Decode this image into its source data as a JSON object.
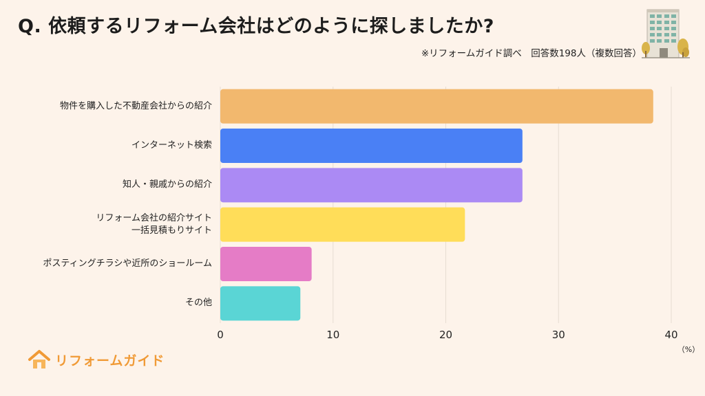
{
  "title": "Q.  依頼するリフォーム会社はどのように探しましたか?",
  "subtitle": "※リフォームガイド調べ　回答数198人（複数回答）",
  "logo_text": "リフォームガイド",
  "chart_data": {
    "type": "bar",
    "orientation": "horizontal",
    "categories": [
      "物件を購入した不動産会社からの紹介",
      "インターネット検索",
      "知人・親戚からの紹介",
      "リフォーム会社の紹介サイト\n一括見積もりサイト",
      "ポスティングチラシや近所のショールーム",
      "その他"
    ],
    "values": [
      38.4,
      26.8,
      26.8,
      21.7,
      8.1,
      7.1
    ],
    "colors": [
      "#f2b86e",
      "#4a80f5",
      "#ab8af4",
      "#ffdd59",
      "#e57cc6",
      "#5ad5d5"
    ],
    "xlim": [
      0,
      40
    ],
    "xticks": [
      0,
      10,
      20,
      30,
      40
    ],
    "unit": "（%）",
    "grid": true
  }
}
